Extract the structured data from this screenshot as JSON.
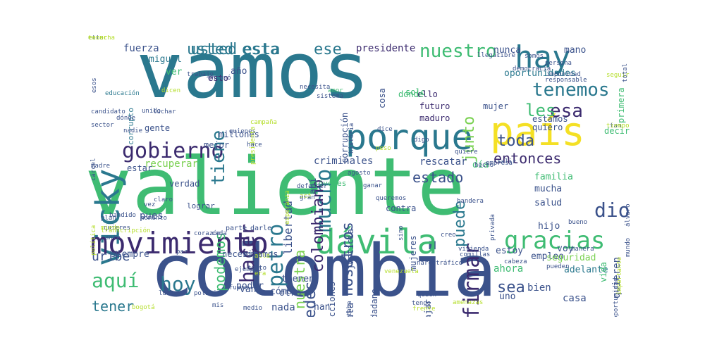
{
  "palette": {
    "dark": "#3b2a6e",
    "blue": "#3a5e8c",
    "teal": "#2a788e",
    "green": "#2f9e7b",
    "lime": "#7ad151",
    "yellow": "#f4e025",
    "light": "#b5de2b"
  },
  "words": [
    {
      "text": "vamos",
      "weight": 100,
      "color": "#2a788e"
    },
    {
      "text": "valiente",
      "weight": 96,
      "color": "#3fbc73"
    },
    {
      "text": "colombia",
      "weight": 82,
      "color": "#3b528b"
    },
    {
      "text": "porque",
      "weight": 40,
      "color": "#2a788e"
    },
    {
      "text": "país",
      "weight": 44,
      "color": "#f4e025"
    },
    {
      "text": "vicky",
      "weight": 40,
      "color": "#2a788e"
    },
    {
      "text": "hay",
      "weight": 36,
      "color": "#2a788e"
    },
    {
      "text": "dávila",
      "weight": 34,
      "color": "#3fbc73"
    },
    {
      "text": "movimiento",
      "weight": 30,
      "color": "#3b2a6e"
    },
    {
      "text": "gracias",
      "weight": 26,
      "color": "#3fbc73"
    },
    {
      "text": "gobierno",
      "weight": 25,
      "color": "#3b2a6e"
    },
    {
      "text": "tenemos",
      "weight": 22,
      "color": "#2a788e"
    },
    {
      "text": "mucho",
      "weight": 24,
      "color": "#2a788e"
    },
    {
      "text": "esa",
      "weight": 22,
      "color": "#3b2a6e"
    },
    {
      "text": "les",
      "weight": 20,
      "color": "#3fbc73"
    },
    {
      "text": "nuestro",
      "weight": 20,
      "color": "#3fbc73"
    },
    {
      "text": "hoy",
      "weight": 22,
      "color": "#2a788e"
    },
    {
      "text": "aquí",
      "weight": 20,
      "color": "#3fbc73"
    },
    {
      "text": "firmar",
      "weight": 20,
      "color": "#3b2a6e"
    },
    {
      "text": "petro",
      "weight": 22,
      "color": "#2a788e"
    },
    {
      "text": "hacer",
      "weight": 20,
      "color": "#3b2a6e"
    },
    {
      "text": "tiene",
      "weight": 18,
      "color": "#2a788e"
    },
    {
      "text": "colombiano",
      "weight": 17,
      "color": "#3b2a6e"
    },
    {
      "text": "usted",
      "weight": 18,
      "color": "#2a788e"
    },
    {
      "text": "esta",
      "weight": 18,
      "color": "#2a788e"
    },
    {
      "text": "ese",
      "weight": 18,
      "color": "#2a788e"
    },
    {
      "text": "usted esta",
      "weight": 18,
      "color": "#2a788e"
    },
    {
      "text": "nosotros",
      "weight": 17,
      "color": "#3b528b"
    },
    {
      "text": "ustedes",
      "weight": 17,
      "color": "#3b528b"
    },
    {
      "text": "nuestra",
      "weight": 16,
      "color": "#7ad151"
    },
    {
      "text": "podemos",
      "weight": 16,
      "color": "#3fbc73"
    },
    {
      "text": "puede",
      "weight": 17,
      "color": "#2a788e"
    },
    {
      "text": "junto",
      "weight": 15,
      "color": "#7ad151"
    },
    {
      "text": "toda",
      "weight": 16,
      "color": "#3b528b"
    },
    {
      "text": "entonces",
      "weight": 15,
      "color": "#3b2a6e"
    },
    {
      "text": "dio",
      "weight": 17,
      "color": "#3b528b"
    },
    {
      "text": "uribe",
      "weight": 15,
      "color": "#3b528b"
    },
    {
      "text": "tener",
      "weight": 15,
      "color": "#2a788e"
    },
    {
      "text": "sea",
      "weight": 15,
      "color": "#3b528b"
    },
    {
      "text": "estado",
      "weight": 14,
      "color": "#3b528b"
    },
    {
      "text": "libertad",
      "weight": 12,
      "color": "#3b528b"
    },
    {
      "text": "presidente",
      "weight": 11,
      "color": "#3b2a6e"
    },
    {
      "text": "fuerza",
      "weight": 11,
      "color": "#3b528b"
    },
    {
      "text": "nunca",
      "weight": 11,
      "color": "#3b528b"
    },
    {
      "text": "mano",
      "weight": 11,
      "color": "#3b528b"
    },
    {
      "text": "oportunidades",
      "weight": 10,
      "color": "#2a788e"
    },
    {
      "text": "miguel",
      "weight": 10,
      "color": "#2a788e"
    },
    {
      "text": "ver",
      "weight": 10,
      "color": "#3fbc73"
    },
    {
      "text": "año",
      "weight": 11,
      "color": "#3b528b"
    },
    {
      "text": "esto",
      "weight": 9,
      "color": "#3b2a6e"
    },
    {
      "text": "corrupción",
      "weight": 9,
      "color": "#3b528b"
    },
    {
      "text": "solo",
      "weight": 10,
      "color": "#3fbc73"
    },
    {
      "text": "ello",
      "weight": 9,
      "color": "#3b2a6e"
    },
    {
      "text": "futuro",
      "weight": 9,
      "color": "#3b2a6e"
    },
    {
      "text": "maduro",
      "weight": 9,
      "color": "#3b2a6e"
    },
    {
      "text": "mujer",
      "weight": 10,
      "color": "#3b528b"
    },
    {
      "text": "quiero",
      "weight": 10,
      "color": "#3b528b"
    },
    {
      "text": "estamos",
      "weight": 9,
      "color": "#3b528b"
    },
    {
      "text": "decir",
      "weight": 10,
      "color": "#3fbc73"
    },
    {
      "text": "primera",
      "weight": 9,
      "color": "#3fbc73"
    },
    {
      "text": "gente",
      "weight": 10,
      "color": "#3b528b"
    },
    {
      "text": "mejor",
      "weight": 10,
      "color": "#3b528b"
    },
    {
      "text": "millones",
      "weight": 10,
      "color": "#3b528b"
    },
    {
      "text": "recuperar",
      "weight": 11,
      "color": "#7ad151"
    },
    {
      "text": "estar",
      "weight": 10,
      "color": "#3b528b"
    },
    {
      "text": "verdad",
      "weight": 10,
      "color": "#3b528b"
    },
    {
      "text": "pues",
      "weight": 11,
      "color": "#3b528b"
    },
    {
      "text": "criminales",
      "weight": 10,
      "color": "#3b528b"
    },
    {
      "text": "rescatar",
      "weight": 10,
      "color": "#3b528b"
    },
    {
      "text": "día",
      "weight": 10,
      "color": "#3fbc73"
    },
    {
      "text": "familia",
      "weight": 10,
      "color": "#3fbc73"
    },
    {
      "text": "mucha",
      "weight": 10,
      "color": "#3b528b"
    },
    {
      "text": "salud",
      "weight": 10,
      "color": "#3b528b"
    },
    {
      "text": "hijo",
      "weight": 10,
      "color": "#3b528b"
    },
    {
      "text": "voy",
      "weight": 10,
      "color": "#3b528b"
    },
    {
      "text": "adelante",
      "weight": 10,
      "color": "#2a788e"
    },
    {
      "text": "empleo",
      "weight": 9,
      "color": "#3b528b"
    },
    {
      "text": "vida",
      "weight": 10,
      "color": "#3fbc73"
    },
    {
      "text": "seguridad",
      "weight": 10,
      "color": "#7ad151"
    },
    {
      "text": "ahora",
      "weight": 10,
      "color": "#3fbc73"
    },
    {
      "text": "bien",
      "weight": 10,
      "color": "#3b528b"
    },
    {
      "text": "casa",
      "weight": 10,
      "color": "#3b528b"
    },
    {
      "text": "uno",
      "weight": 10,
      "color": "#3b528b"
    },
    {
      "text": "quieren",
      "weight": 10,
      "color": "#3b528b"
    },
    {
      "text": "contra",
      "weight": 9,
      "color": "#3b528b"
    },
    {
      "text": "justicia",
      "weight": 9,
      "color": "#3b528b"
    },
    {
      "text": "mujeres",
      "weight": 9,
      "color": "#3b528b"
    },
    {
      "text": "estoy",
      "weight": 10,
      "color": "#3b528b"
    },
    {
      "text": "ciudadano",
      "weight": 9,
      "color": "#3b528b"
    },
    {
      "text": "plata",
      "weight": 10,
      "color": "#3b528b"
    },
    {
      "text": "elecciones",
      "weight": 9,
      "color": "#3b528b"
    },
    {
      "text": "trabajar",
      "weight": 9,
      "color": "#3b528b"
    },
    {
      "text": "han",
      "weight": 10,
      "color": "#3b528b"
    },
    {
      "text": "nada",
      "weight": 10,
      "color": "#3b528b"
    },
    {
      "text": "otro",
      "weight": 10,
      "color": "#3b528b"
    },
    {
      "text": "tienen",
      "weight": 10,
      "color": "#3b528b"
    },
    {
      "text": "cómo",
      "weight": 10,
      "color": "#3b528b"
    },
    {
      "text": "van",
      "weight": 10,
      "color": "#3b528b"
    },
    {
      "text": "poder",
      "weight": 10,
      "color": "#3b528b"
    },
    {
      "text": "siempre",
      "weight": 10,
      "color": "#3b528b"
    },
    {
      "text": "necesitamos",
      "weight": 9,
      "color": "#3b528b"
    },
    {
      "text": "cosa",
      "weight": 9,
      "color": "#3b528b"
    },
    {
      "text": "donde",
      "weight": 9,
      "color": "#3fbc73"
    },
    {
      "text": "ahí",
      "weight": 10,
      "color": "#3b528b"
    },
    {
      "text": "corrupto",
      "weight": 8,
      "color": "#2a788e"
    },
    {
      "text": "jóvenes",
      "weight": 8,
      "color": "#3fbc73"
    },
    {
      "text": "lograr",
      "weight": 8,
      "color": "#3b528b"
    },
    {
      "text": "parte",
      "weight": 7,
      "color": "#3b528b"
    },
    {
      "text": "darle",
      "weight": 7,
      "color": "#3b528b"
    },
    {
      "text": "unido",
      "weight": 7,
      "color": "#3b528b"
    },
    {
      "text": "dónde",
      "weight": 7,
      "color": "#3b528b"
    },
    {
      "text": "candidato",
      "weight": 7,
      "color": "#3b528b"
    },
    {
      "text": "educación",
      "weight": 7,
      "color": "#2a788e"
    },
    {
      "text": "sector",
      "weight": 7,
      "color": "#3b528b"
    },
    {
      "text": "nadie",
      "weight": 7,
      "color": "#3b528b"
    },
    {
      "text": "luchar",
      "weight": 7,
      "color": "#3b528b"
    },
    {
      "text": "quienes",
      "weight": 7,
      "color": "#3b528b"
    },
    {
      "text": "madre",
      "weight": 7,
      "color": "#3b528b"
    },
    {
      "text": "cárcel",
      "weight": 7,
      "color": "#3b528b"
    },
    {
      "text": "política",
      "weight": 7,
      "color": "#b5de2b"
    },
    {
      "text": "plan",
      "weight": 7,
      "color": "#3b528b"
    },
    {
      "text": "bandido",
      "weight": 7,
      "color": "#3b528b"
    },
    {
      "text": "transcripción",
      "weight": 7,
      "color": "#b5de2b"
    },
    {
      "text": "corazón",
      "weight": 7,
      "color": "#3b528b"
    },
    {
      "text": "cada",
      "weight": 7,
      "color": "#3b528b"
    },
    {
      "text": "ante",
      "weight": 7,
      "color": "#3b528b"
    },
    {
      "text": "momento",
      "weight": 7,
      "color": "#3b528b"
    },
    {
      "text": "paz",
      "weight": 7,
      "color": "#3b528b"
    },
    {
      "text": "mamá",
      "weight": 7,
      "color": "#3b528b"
    },
    {
      "text": "tanto",
      "weight": 7,
      "color": "#3b528b"
    },
    {
      "text": "ejemplo",
      "weight": 7,
      "color": "#3b528b"
    },
    {
      "text": "fuera",
      "weight": 7,
      "color": "#3b528b"
    },
    {
      "text": "lucha",
      "weight": 7,
      "color": "#3b528b"
    },
    {
      "text": "medio",
      "weight": 7,
      "color": "#3b528b"
    },
    {
      "text": "mis",
      "weight": 7,
      "color": "#3b528b"
    },
    {
      "text": "bogotá",
      "weight": 7,
      "color": "#b5de2b"
    },
    {
      "text": "historia",
      "weight": 7,
      "color": "#3b528b"
    },
    {
      "text": "agosto",
      "weight": 7,
      "color": "#3b528b"
    },
    {
      "text": "dice",
      "weight": 7,
      "color": "#3b528b"
    },
    {
      "text": "ganar",
      "weight": 7,
      "color": "#3b528b"
    },
    {
      "text": "quiere",
      "weight": 7,
      "color": "#3b528b"
    },
    {
      "text": "digo",
      "weight": 7,
      "color": "#3b528b"
    },
    {
      "text": "salir",
      "weight": 7,
      "color": "#3b528b"
    },
    {
      "text": "hecho",
      "weight": 7,
      "color": "#3b528b"
    },
    {
      "text": "bandera",
      "weight": 7,
      "color": "#3b528b"
    },
    {
      "text": "privada",
      "weight": 7,
      "color": "#3b528b"
    },
    {
      "text": "vivienda",
      "weight": 7,
      "color": "#3b528b"
    },
    {
      "text": "comillas",
      "weight": 7,
      "color": "#3b528b"
    },
    {
      "text": "cabeza",
      "weight": 7,
      "color": "#3b528b"
    },
    {
      "text": "pueden",
      "weight": 7,
      "color": "#3b528b"
    },
    {
      "text": "manera",
      "weight": 7,
      "color": "#3b528b"
    },
    {
      "text": "bueno",
      "weight": 7,
      "color": "#3b528b"
    },
    {
      "text": "mundo",
      "weight": 7,
      "color": "#3b528b"
    },
    {
      "text": "álvaro",
      "weight": 7,
      "color": "#3b528b"
    },
    {
      "text": "tan",
      "weight": 7,
      "color": "#3b528b"
    },
    {
      "text": "empresa",
      "weight": 7,
      "color": "#3b528b"
    },
    {
      "text": "llegar",
      "weight": 7,
      "color": "#3b528b"
    },
    {
      "text": "libre",
      "weight": 7,
      "color": "#3b528b"
    },
    {
      "text": "somos",
      "weight": 7,
      "color": "#3b528b"
    },
    {
      "text": "persona",
      "weight": 7,
      "color": "#3b528b"
    },
    {
      "text": "democracia",
      "weight": 7,
      "color": "#3b528b"
    },
    {
      "text": "impunidad",
      "weight": 7,
      "color": "#3b528b"
    },
    {
      "text": "responsable",
      "weight": 7,
      "color": "#3b528b"
    },
    {
      "text": "seguir",
      "weight": 7,
      "color": "#b5de2b"
    },
    {
      "text": "total",
      "weight": 7,
      "color": "#3b528b"
    },
    {
      "text": "esos",
      "weight": 7,
      "color": "#3b528b"
    },
    {
      "text": "trabajo",
      "weight": 7,
      "color": "#3b528b"
    },
    {
      "text": "enconó",
      "weight": 7,
      "color": "#3b528b"
    },
    {
      "text": "necesita",
      "weight": 7,
      "color": "#3b528b"
    },
    {
      "text": "amor",
      "weight": 7,
      "color": "#3fbc73"
    },
    {
      "text": "sistema",
      "weight": 7,
      "color": "#3b528b"
    },
    {
      "text": "peso",
      "weight": 7,
      "color": "#b5de2b"
    },
    {
      "text": "sino",
      "weight": 7,
      "color": "#3b528b"
    },
    {
      "text": "venezuela",
      "weight": 7,
      "color": "#b5de2b"
    },
    {
      "text": "narcotráfico",
      "weight": 7,
      "color": "#3b528b"
    },
    {
      "text": "estaba",
      "weight": 7,
      "color": "#3b528b"
    },
    {
      "text": "tengo",
      "weight": 7,
      "color": "#3b528b"
    },
    {
      "text": "frente",
      "weight": 7,
      "color": "#b5de2b"
    },
    {
      "text": "quien",
      "weight": 7,
      "color": "#3b528b"
    },
    {
      "text": "político",
      "weight": 7,
      "color": "#3b528b"
    },
    {
      "text": "oportunidad",
      "weight": 7,
      "color": "#3b528b"
    },
    {
      "text": "importante",
      "weight": 7,
      "color": "#b5de2b"
    },
    {
      "text": "amenazas",
      "weight": 7,
      "color": "#b5de2b"
    },
    {
      "text": "vez",
      "weight": 7,
      "color": "#3b528b"
    },
    {
      "text": "claro",
      "weight": 7,
      "color": "#3b528b"
    },
    {
      "text": "defender",
      "weight": 7,
      "color": "#3b528b"
    },
    {
      "text": "esperanza",
      "weight": 7,
      "color": "#b5de2b"
    },
    {
      "text": "presidenta",
      "weight": 7,
      "color": "#b5de2b"
    },
    {
      "text": "hace",
      "weight": 7,
      "color": "#3b528b"
    },
    {
      "text": "quieres",
      "weight": 7,
      "color": "#3b528b"
    },
    {
      "text": "miedo",
      "weight": 7,
      "color": "#b5de2b"
    },
    {
      "text": "campaña",
      "weight": 7,
      "color": "#b5de2b"
    },
    {
      "text": "dicen",
      "weight": 7,
      "color": "#b5de2b"
    },
    {
      "text": "era",
      "weight": 7,
      "color": "#b5de2b"
    },
    {
      "text": "allá",
      "weight": 7,
      "color": "#b5de2b"
    },
    {
      "text": "acá",
      "weight": 7,
      "color": "#b5de2b"
    },
    {
      "text": "tiempo",
      "weight": 7,
      "color": "#b5de2b"
    },
    {
      "text": "queremos",
      "weight": 7,
      "color": "#3b528b"
    },
    {
      "text": "creo",
      "weight": 7,
      "color": "#3b528b"
    },
    {
      "text": "gran",
      "weight": 7,
      "color": "#3b528b"
    },
    {
      "text": "ella",
      "weight": 7,
      "color": "#3b528b"
    },
    {
      "text": "escucha",
      "weight": 7,
      "color": "#b5de2b"
    },
    {
      "text": "tener",
      "weight": 7,
      "color": "#b5de2b"
    }
  ]
}
